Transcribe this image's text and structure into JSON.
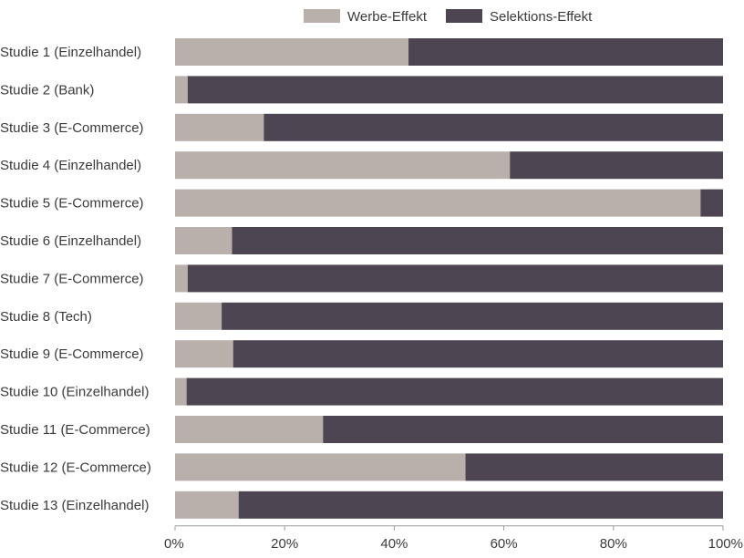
{
  "chart_data": {
    "type": "bar",
    "orientation": "horizontal",
    "stacked": true,
    "percent": true,
    "categories": [
      "Studie 1 (Einzelhandel)",
      "Studie 2 (Bank)",
      "Studie 3 (E-Commerce)",
      "Studie 4 (Einzelhandel)",
      "Studie 5 (E-Commerce)",
      "Studie 6 (Einzelhandel)",
      "Studie 7 (E-Commerce)",
      "Studie 8 (Tech)",
      "Studie 9 (E-Commerce)",
      "Studie 10 (Einzelhandel)",
      "Studie 11 (E-Commerce)",
      "Studie 12 (E-Commerce)",
      "Studie 13 (Einzelhandel)"
    ],
    "series": [
      {
        "name": "Werbe-Effekt",
        "color": "#b9afab",
        "values": [
          42.6,
          2.3,
          16.2,
          61.1,
          95.9,
          10.4,
          2.3,
          8.5,
          10.6,
          2.1,
          27.0,
          53.0,
          11.6
        ]
      },
      {
        "name": "Selektions-Effekt",
        "color": "#4d4552",
        "values": [
          57.4,
          97.7,
          83.8,
          38.9,
          4.1,
          89.6,
          97.7,
          91.5,
          89.4,
          97.9,
          73.0,
          47.0,
          88.4
        ]
      }
    ],
    "xlim": [
      0,
      100
    ],
    "xticks": [
      "0%",
      "20%",
      "40%",
      "60%",
      "80%",
      "100%"
    ],
    "title": "",
    "xlabel": "",
    "ylabel": "",
    "legend": "top-right",
    "grid": false
  }
}
